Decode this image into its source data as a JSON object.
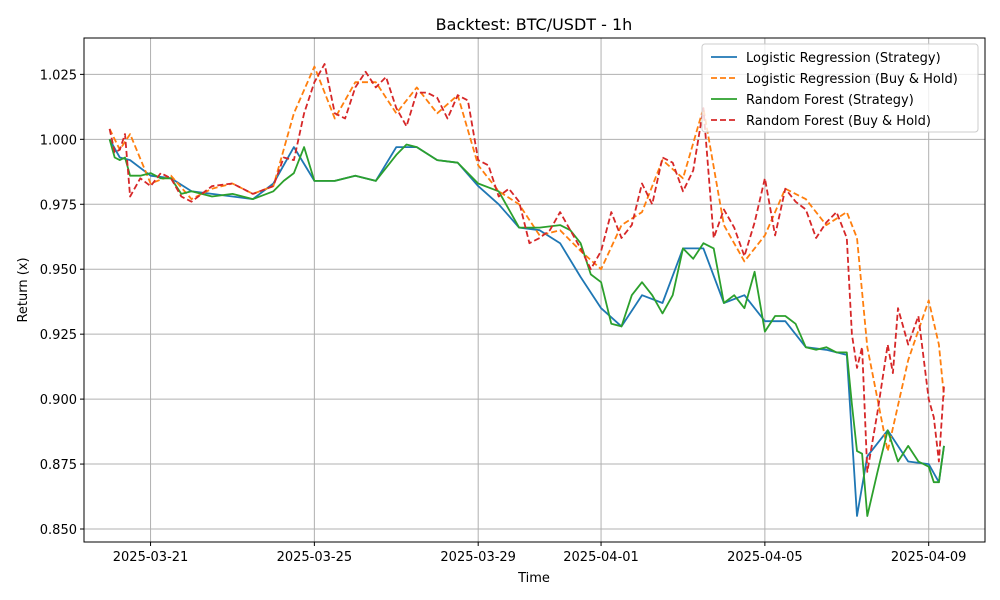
{
  "chart_data": {
    "type": "line",
    "title": "Backtest: BTC/USDT - 1h",
    "xlabel": "Time",
    "ylabel": "Return (x)",
    "grid": true,
    "legend_position": "top-right",
    "xlim": [
      "2025-03-19T09:00",
      "2025-04-10T09:00"
    ],
    "ylim": [
      0.845,
      1.039
    ],
    "x_ticks": [
      {
        "value": "2025-03-21",
        "label": "2025-03-21"
      },
      {
        "value": "2025-03-25",
        "label": "2025-03-25"
      },
      {
        "value": "2025-03-29",
        "label": "2025-03-29"
      },
      {
        "value": "2025-04-01",
        "label": "2025-04-01"
      },
      {
        "value": "2025-04-05",
        "label": "2025-04-05"
      },
      {
        "value": "2025-04-09",
        "label": "2025-04-09"
      }
    ],
    "y_ticks": [
      0.85,
      0.875,
      0.9,
      0.925,
      0.95,
      0.975,
      1.0,
      1.025
    ],
    "y_tick_labels": [
      "0.850",
      "0.875",
      "0.900",
      "0.925",
      "0.950",
      "0.975",
      "1.000",
      "1.025"
    ],
    "series": [
      {
        "name": "Logistic Regression (Strategy)",
        "color": "#1f77b4",
        "dash": "solid",
        "x": [
          "2025-03-20T00:00",
          "2025-03-20T06:00",
          "2025-03-20T12:00",
          "2025-03-21T00:00",
          "2025-03-21T12:00",
          "2025-03-22T00:00",
          "2025-03-22T12:00",
          "2025-03-23T00:00",
          "2025-03-23T12:00",
          "2025-03-24T00:00",
          "2025-03-24T12:00",
          "2025-03-25T00:00",
          "2025-03-25T12:00",
          "2025-03-26T00:00",
          "2025-03-26T12:00",
          "2025-03-27T00:00",
          "2025-03-27T12:00",
          "2025-03-28T00:00",
          "2025-03-28T12:00",
          "2025-03-29T00:00",
          "2025-03-29T12:00",
          "2025-03-30T00:00",
          "2025-03-30T12:00",
          "2025-03-31T00:00",
          "2025-03-31T12:00",
          "2025-04-01T00:00",
          "2025-04-01T12:00",
          "2025-04-02T00:00",
          "2025-04-02T12:00",
          "2025-04-03T00:00",
          "2025-04-03T12:00",
          "2025-04-04T00:00",
          "2025-04-04T12:00",
          "2025-04-05T00:00",
          "2025-04-05T12:00",
          "2025-04-06T00:00",
          "2025-04-06T12:00",
          "2025-04-07T00:00",
          "2025-04-07T06:00",
          "2025-04-07T12:00",
          "2025-04-08T00:00",
          "2025-04-08T12:00",
          "2025-04-09T00:00",
          "2025-04-09T06:00",
          "2025-04-09T09:00"
        ],
        "y": [
          1.0,
          0.993,
          0.992,
          0.986,
          0.985,
          0.98,
          0.979,
          0.978,
          0.977,
          0.983,
          0.997,
          0.984,
          0.984,
          0.986,
          0.984,
          0.997,
          0.997,
          0.992,
          0.991,
          0.982,
          0.975,
          0.966,
          0.965,
          0.96,
          0.947,
          0.935,
          0.928,
          0.94,
          0.937,
          0.958,
          0.958,
          0.937,
          0.94,
          0.93,
          0.93,
          0.92,
          0.919,
          0.917,
          0.855,
          0.878,
          0.888,
          0.876,
          0.875,
          0.868,
          0.882
        ]
      },
      {
        "name": "Logistic Regression (Buy & Hold)",
        "color": "#ff7f0e",
        "dash": "dashed",
        "x": [
          "2025-03-20T00:00",
          "2025-03-20T06:00",
          "2025-03-20T12:00",
          "2025-03-21T00:00",
          "2025-03-21T12:00",
          "2025-03-22T00:00",
          "2025-03-22T12:00",
          "2025-03-23T00:00",
          "2025-03-23T12:00",
          "2025-03-24T00:00",
          "2025-03-24T12:00",
          "2025-03-25T00:00",
          "2025-03-25T12:00",
          "2025-03-26T00:00",
          "2025-03-26T12:00",
          "2025-03-27T00:00",
          "2025-03-27T12:00",
          "2025-03-28T00:00",
          "2025-03-28T12:00",
          "2025-03-29T00:00",
          "2025-03-29T12:00",
          "2025-03-30T00:00",
          "2025-03-30T12:00",
          "2025-03-31T00:00",
          "2025-03-31T12:00",
          "2025-04-01T00:00",
          "2025-04-01T12:00",
          "2025-04-02T00:00",
          "2025-04-02T12:00",
          "2025-04-03T00:00",
          "2025-04-03T12:00",
          "2025-04-04T00:00",
          "2025-04-04T12:00",
          "2025-04-05T00:00",
          "2025-04-05T12:00",
          "2025-04-06T00:00",
          "2025-04-06T12:00",
          "2025-04-07T00:00",
          "2025-04-07T06:00",
          "2025-04-07T12:00",
          "2025-04-08T00:00",
          "2025-04-08T12:00",
          "2025-04-09T00:00",
          "2025-04-09T06:00",
          "2025-04-09T09:00"
        ],
        "y": [
          1.004,
          0.996,
          1.002,
          0.983,
          0.986,
          0.977,
          0.981,
          0.983,
          0.979,
          0.982,
          1.01,
          1.028,
          1.008,
          1.022,
          1.022,
          1.01,
          1.02,
          1.01,
          1.017,
          0.99,
          0.98,
          0.975,
          0.963,
          0.965,
          0.957,
          0.95,
          0.967,
          0.972,
          0.992,
          0.985,
          1.012,
          0.967,
          0.953,
          0.963,
          0.981,
          0.977,
          0.967,
          0.972,
          0.962,
          0.92,
          0.88,
          0.915,
          0.938,
          0.921,
          0.901
        ]
      },
      {
        "name": "Random Forest (Strategy)",
        "color": "#2ca02c",
        "dash": "solid",
        "x": [
          "2025-03-20T00:00",
          "2025-03-20T03:00",
          "2025-03-20T06:00",
          "2025-03-20T09:00",
          "2025-03-20T12:00",
          "2025-03-20T18:00",
          "2025-03-21T00:00",
          "2025-03-21T06:00",
          "2025-03-21T12:00",
          "2025-03-21T18:00",
          "2025-03-22T00:00",
          "2025-03-22T12:00",
          "2025-03-23T00:00",
          "2025-03-23T12:00",
          "2025-03-24T00:00",
          "2025-03-24T06:00",
          "2025-03-24T12:00",
          "2025-03-24T18:00",
          "2025-03-25T00:00",
          "2025-03-25T12:00",
          "2025-03-26T00:00",
          "2025-03-26T12:00",
          "2025-03-27T00:00",
          "2025-03-27T06:00",
          "2025-03-27T12:00",
          "2025-03-28T00:00",
          "2025-03-28T12:00",
          "2025-03-29T00:00",
          "2025-03-29T12:00",
          "2025-03-30T00:00",
          "2025-03-30T12:00",
          "2025-03-31T00:00",
          "2025-03-31T06:00",
          "2025-03-31T12:00",
          "2025-03-31T18:00",
          "2025-04-01T00:00",
          "2025-04-01T06:00",
          "2025-04-01T12:00",
          "2025-04-01T18:00",
          "2025-04-02T00:00",
          "2025-04-02T06:00",
          "2025-04-02T12:00",
          "2025-04-02T18:00",
          "2025-04-03T00:00",
          "2025-04-03T06:00",
          "2025-04-03T12:00",
          "2025-04-03T18:00",
          "2025-04-04T00:00",
          "2025-04-04T06:00",
          "2025-04-04T12:00",
          "2025-04-04T18:00",
          "2025-04-05T00:00",
          "2025-04-05T06:00",
          "2025-04-05T12:00",
          "2025-04-05T18:00",
          "2025-04-06T00:00",
          "2025-04-06T06:00",
          "2025-04-06T12:00",
          "2025-04-06T18:00",
          "2025-04-07T00:00",
          "2025-04-07T03:00",
          "2025-04-07T06:00",
          "2025-04-07T09:00",
          "2025-04-07T12:00",
          "2025-04-07T18:00",
          "2025-04-08T00:00",
          "2025-04-08T06:00",
          "2025-04-08T12:00",
          "2025-04-08T18:00",
          "2025-04-09T00:00",
          "2025-04-09T03:00",
          "2025-04-09T06:00",
          "2025-04-09T09:00"
        ],
        "y": [
          1.0,
          0.993,
          0.992,
          0.993,
          0.986,
          0.986,
          0.987,
          0.985,
          0.985,
          0.979,
          0.98,
          0.978,
          0.979,
          0.977,
          0.98,
          0.984,
          0.987,
          0.997,
          0.984,
          0.984,
          0.986,
          0.984,
          0.994,
          0.998,
          0.997,
          0.992,
          0.991,
          0.983,
          0.98,
          0.966,
          0.966,
          0.967,
          0.965,
          0.96,
          0.948,
          0.945,
          0.929,
          0.928,
          0.94,
          0.945,
          0.94,
          0.933,
          0.94,
          0.958,
          0.954,
          0.96,
          0.958,
          0.937,
          0.94,
          0.935,
          0.949,
          0.926,
          0.932,
          0.932,
          0.929,
          0.92,
          0.919,
          0.92,
          0.918,
          0.918,
          0.898,
          0.88,
          0.879,
          0.855,
          0.872,
          0.888,
          0.876,
          0.882,
          0.876,
          0.874,
          0.868,
          0.868,
          0.882
        ]
      },
      {
        "name": "Random Forest (Buy & Hold)",
        "color": "#d62728",
        "dash": "dashed",
        "x": [
          "2025-03-20T00:00",
          "2025-03-20T03:00",
          "2025-03-20T06:00",
          "2025-03-20T09:00",
          "2025-03-20T12:00",
          "2025-03-20T18:00",
          "2025-03-21T00:00",
          "2025-03-21T06:00",
          "2025-03-21T12:00",
          "2025-03-21T18:00",
          "2025-03-22T00:00",
          "2025-03-22T12:00",
          "2025-03-23T00:00",
          "2025-03-23T12:00",
          "2025-03-24T00:00",
          "2025-03-24T06:00",
          "2025-03-24T12:00",
          "2025-03-24T18:00",
          "2025-03-25T00:00",
          "2025-03-25T06:00",
          "2025-03-25T12:00",
          "2025-03-25T18:00",
          "2025-03-26T00:00",
          "2025-03-26T06:00",
          "2025-03-26T12:00",
          "2025-03-26T18:00",
          "2025-03-27T00:00",
          "2025-03-27T06:00",
          "2025-03-27T12:00",
          "2025-03-27T18:00",
          "2025-03-28T00:00",
          "2025-03-28T06:00",
          "2025-03-28T12:00",
          "2025-03-28T18:00",
          "2025-03-29T00:00",
          "2025-03-29T06:00",
          "2025-03-29T12:00",
          "2025-03-29T18:00",
          "2025-03-30T00:00",
          "2025-03-30T06:00",
          "2025-03-30T12:00",
          "2025-03-30T18:00",
          "2025-03-31T00:00",
          "2025-03-31T06:00",
          "2025-03-31T12:00",
          "2025-03-31T18:00",
          "2025-04-01T00:00",
          "2025-04-01T06:00",
          "2025-04-01T12:00",
          "2025-04-01T18:00",
          "2025-04-02T00:00",
          "2025-04-02T06:00",
          "2025-04-02T12:00",
          "2025-04-02T18:00",
          "2025-04-03T00:00",
          "2025-04-03T06:00",
          "2025-04-03T12:00",
          "2025-04-03T18:00",
          "2025-04-04T00:00",
          "2025-04-04T06:00",
          "2025-04-04T12:00",
          "2025-04-04T18:00",
          "2025-04-05T00:00",
          "2025-04-05T06:00",
          "2025-04-05T12:00",
          "2025-04-05T18:00",
          "2025-04-06T00:00",
          "2025-04-06T06:00",
          "2025-04-06T12:00",
          "2025-04-06T18:00",
          "2025-04-07T00:00",
          "2025-04-07T03:00",
          "2025-04-07T06:00",
          "2025-04-07T09:00",
          "2025-04-07T12:00",
          "2025-04-07T18:00",
          "2025-04-08T00:00",
          "2025-04-08T03:00",
          "2025-04-08T06:00",
          "2025-04-08T12:00",
          "2025-04-08T18:00",
          "2025-04-09T00:00",
          "2025-04-09T03:00",
          "2025-04-09T06:00",
          "2025-04-09T09:00"
        ],
        "y": [
          1.004,
          0.995,
          0.996,
          1.002,
          0.978,
          0.985,
          0.982,
          0.987,
          0.985,
          0.978,
          0.976,
          0.982,
          0.983,
          0.979,
          0.982,
          0.993,
          0.992,
          1.01,
          1.022,
          1.029,
          1.01,
          1.008,
          1.02,
          1.026,
          1.02,
          1.024,
          1.012,
          1.005,
          1.018,
          1.018,
          1.016,
          1.008,
          1.017,
          1.015,
          0.992,
          0.99,
          0.978,
          0.981,
          0.976,
          0.96,
          0.962,
          0.965,
          0.972,
          0.965,
          0.958,
          0.95,
          0.957,
          0.972,
          0.962,
          0.967,
          0.983,
          0.975,
          0.993,
          0.991,
          0.98,
          0.988,
          1.012,
          0.962,
          0.973,
          0.966,
          0.955,
          0.968,
          0.985,
          0.963,
          0.981,
          0.976,
          0.973,
          0.962,
          0.968,
          0.972,
          0.962,
          0.925,
          0.912,
          0.92,
          0.872,
          0.895,
          0.921,
          0.91,
          0.935,
          0.921,
          0.932,
          0.9,
          0.893,
          0.876,
          0.905
        ]
      }
    ]
  }
}
